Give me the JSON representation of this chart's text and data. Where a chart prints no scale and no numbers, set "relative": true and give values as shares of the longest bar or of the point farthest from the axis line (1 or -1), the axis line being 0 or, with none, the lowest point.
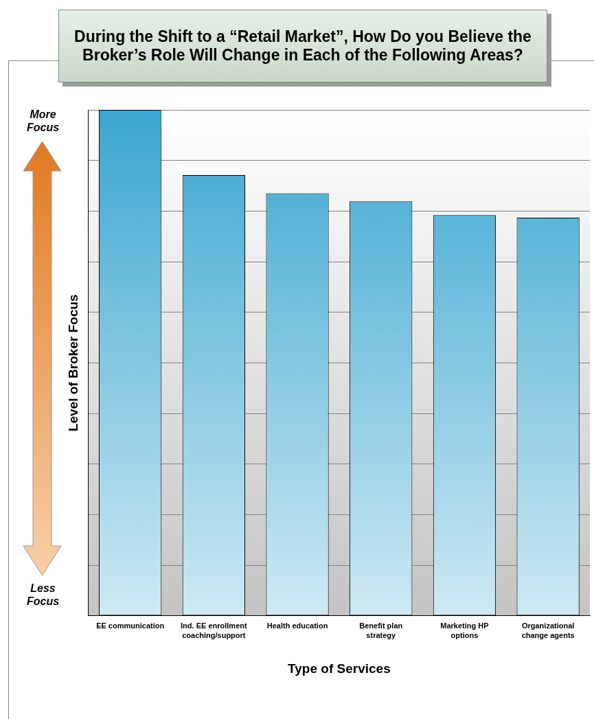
{
  "chart_data": {
    "type": "bar",
    "title": "During the Shift to a “Retail Market”, How Do you Believe the Broker’s Role Will Change in Each of the Following Areas?",
    "xlabel": "Type of Services",
    "ylabel": "Level of Broker Focus",
    "categories": [
      "EE communication",
      "Ind. EE enrollment coaching/support",
      "Health education",
      "Benefit plan strategy",
      "Marketing HP options",
      "Organizational change agents"
    ],
    "values": [
      1,
      0.871,
      0.835,
      0.819,
      0.792,
      0.787
    ],
    "color": "#3aa6d0",
    "relative": true,
    "grid": "y",
    "legend": false,
    "annotations": [
      "More Focus",
      "Less Focus"
    ]
  }
}
